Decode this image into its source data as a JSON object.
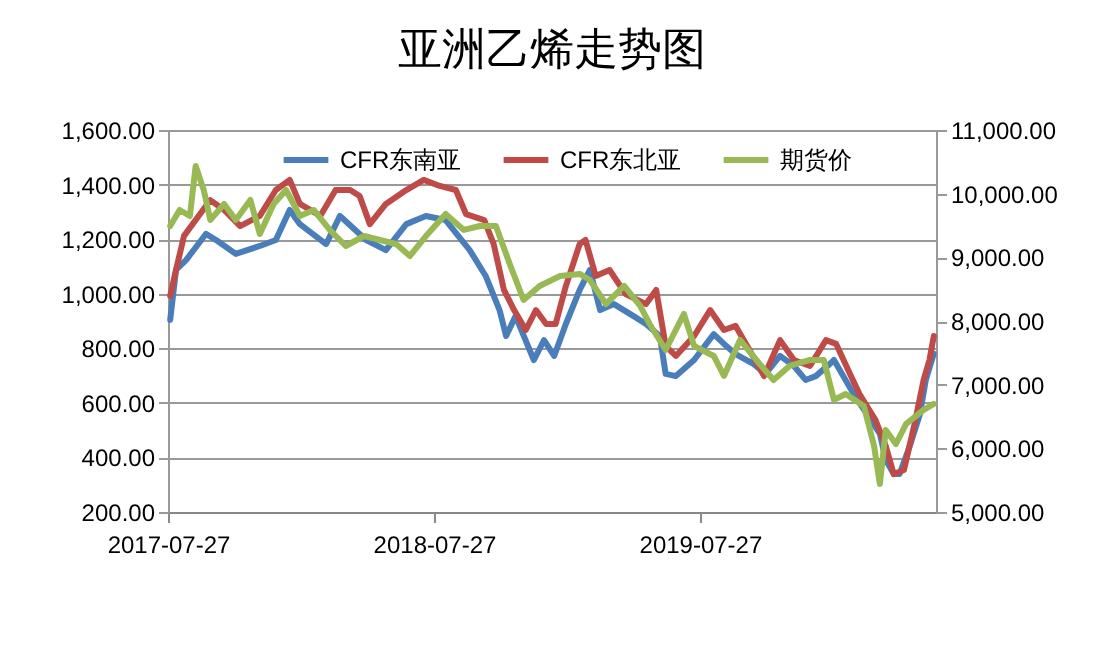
{
  "chart_data": {
    "type": "line",
    "title": "亚洲乙烯走势图",
    "xlim": [
      "2017-07-27",
      "2020-06-15"
    ],
    "xticks": [
      "2017-07-27",
      "2018-07-27",
      "2019-07-27"
    ],
    "ylim": [
      200,
      1600
    ],
    "yticks": [
      {
        "value": 200,
        "label": "200.00"
      },
      {
        "value": 400,
        "label": "400.00"
      },
      {
        "value": 600,
        "label": "600.00"
      },
      {
        "value": 800,
        "label": "800.00"
      },
      {
        "value": 1000,
        "label": "1,000.00"
      },
      {
        "value": 1200,
        "label": "1,200.00"
      },
      {
        "value": 1400,
        "label": "1,400.00"
      },
      {
        "value": 1600,
        "label": "1,600.00"
      }
    ],
    "y2lim": [
      5000,
      11000
    ],
    "y2ticks": [
      {
        "value": 5000,
        "label": "5,000.00"
      },
      {
        "value": 6000,
        "label": "6,000.00"
      },
      {
        "value": 7000,
        "label": "7,000.00"
      },
      {
        "value": 8000,
        "label": "8,000.00"
      },
      {
        "value": 9000,
        "label": "9,000.00"
      },
      {
        "value": 10000,
        "label": "10,000.00"
      },
      {
        "value": 11000,
        "label": "11,000.00"
      }
    ],
    "grid": "y",
    "legend": "top",
    "marker": "none",
    "line_style": "solid",
    "series": [
      {
        "name": "CFR东南亚",
        "color": "#4a7ebb",
        "x": [
          "2017-07-30",
          "2017-08-07",
          "2017-08-21",
          "2017-09-17",
          "2017-10-01",
          "2017-10-28",
          "2017-11-30",
          "2017-12-22",
          "2018-01-10",
          "2018-01-24",
          "2018-03-01",
          "2018-03-20",
          "2018-04-25",
          "2018-05-22",
          "2018-06-19",
          "2018-07-16",
          "2018-08-12",
          "2018-09-14",
          "2018-10-06",
          "2018-10-25",
          "2018-11-03",
          "2018-11-16",
          "2018-12-11",
          "2018-12-25",
          "2019-01-08",
          "2019-01-24",
          "2019-02-12",
          "2019-02-26",
          "2019-03-12",
          "2019-03-31",
          "2019-04-27",
          "2019-05-14",
          "2019-06-02",
          "2019-06-10",
          "2019-06-24",
          "2019-07-19",
          "2019-08-15",
          "2019-08-29",
          "2019-09-14",
          "2019-10-09",
          "2019-10-25",
          "2019-11-14",
          "2019-12-03",
          "2019-12-19",
          "2020-01-02",
          "2020-01-21",
          "2020-01-27",
          "2020-02-23",
          "2020-03-30",
          "2020-04-07",
          "2020-04-18",
          "2020-04-26",
          "2020-05-10",
          "2020-05-24",
          "2020-06-01",
          "2020-06-12"
        ],
        "values": [
          904,
          1087,
          1124,
          1219,
          1197,
          1146,
          1175,
          1197,
          1307,
          1255,
          1182,
          1285,
          1197,
          1160,
          1255,
          1285,
          1270,
          1160,
          1065,
          940,
          845,
          918,
          757,
          830,
          772,
          889,
          1014,
          1087,
          940,
          962,
          918,
          889,
          845,
          706,
          698,
          757,
          852,
          816,
          779,
          742,
          706,
          772,
          735,
          684,
          698,
          742,
          757,
          632,
          486,
          391,
          339,
          339,
          442,
          559,
          684,
          780
        ]
      },
      {
        "name": "CFR东北亚",
        "color": "#be4b48",
        "x": [
          "2017-07-30",
          "2017-08-07",
          "2017-08-18",
          "2017-09-09",
          "2017-09-23",
          "2017-10-12",
          "2017-11-03",
          "2017-11-30",
          "2017-12-22",
          "2018-01-10",
          "2018-01-24",
          "2018-02-21",
          "2018-03-14",
          "2018-04-03",
          "2018-04-16",
          "2018-04-30",
          "2018-05-22",
          "2018-06-19",
          "2018-07-13",
          "2018-08-04",
          "2018-08-26",
          "2018-09-09",
          "2018-10-04",
          "2018-10-17",
          "2018-10-31",
          "2018-11-14",
          "2018-11-30",
          "2018-12-14",
          "2018-12-28",
          "2019-01-10",
          "2019-01-24",
          "2019-02-12",
          "2019-02-20",
          "2019-03-06",
          "2019-03-25",
          "2019-04-16",
          "2019-05-14",
          "2019-05-28",
          "2019-06-10",
          "2019-06-24",
          "2019-07-19",
          "2019-08-10",
          "2019-08-29",
          "2019-09-14",
          "2019-10-03",
          "2019-10-23",
          "2019-11-14",
          "2019-12-03",
          "2019-12-25",
          "2020-01-16",
          "2020-01-30",
          "2020-02-18",
          "2020-03-02",
          "2020-03-24",
          "2020-04-07",
          "2020-04-18",
          "2020-05-02",
          "2020-05-16",
          "2020-05-29",
          "2020-06-06",
          "2020-06-12"
        ],
        "values": [
          992,
          1087,
          1212,
          1292,
          1343,
          1307,
          1248,
          1285,
          1380,
          1417,
          1329,
          1285,
          1380,
          1380,
          1358,
          1255,
          1329,
          1380,
          1417,
          1395,
          1380,
          1292,
          1270,
          1182,
          1014,
          940,
          867,
          940,
          889,
          889,
          1028,
          1182,
          1197,
          1065,
          1087,
          999,
          962,
          1014,
          808,
          772,
          845,
          940,
          867,
          882,
          794,
          698,
          830,
          757,
          735,
          830,
          816,
          706,
          632,
          537,
          442,
          339,
          354,
          515,
          684,
          757,
          845
        ]
      },
      {
        "name": "期货价",
        "color": "#98b954",
        "axis": "y2",
        "x": [
          "2017-07-30",
          "2017-08-12",
          "2017-08-26",
          "2017-09-03",
          "2017-09-14",
          "2017-09-23",
          "2017-10-12",
          "2017-10-28",
          "2017-11-17",
          "2017-11-30",
          "2017-12-19",
          "2018-01-05",
          "2018-01-24",
          "2018-02-12",
          "2018-03-06",
          "2018-03-28",
          "2018-04-22",
          "2018-05-14",
          "2018-06-05",
          "2018-06-24",
          "2018-07-16",
          "2018-08-12",
          "2018-09-06",
          "2018-09-28",
          "2018-10-20",
          "2018-11-08",
          "2018-11-27",
          "2018-12-19",
          "2019-01-16",
          "2019-02-12",
          "2019-02-26",
          "2019-03-20",
          "2019-04-14",
          "2019-05-06",
          "2019-05-19",
          "2019-06-10",
          "2019-07-05",
          "2019-07-19",
          "2019-08-15",
          "2019-08-29",
          "2019-09-20",
          "2019-10-17",
          "2019-11-05",
          "2019-11-27",
          "2019-12-25",
          "2020-01-13",
          "2020-01-27",
          "2020-02-12",
          "2020-03-08",
          "2020-03-22",
          "2020-03-30",
          "2020-04-07",
          "2020-04-21",
          "2020-05-05",
          "2020-05-29",
          "2020-06-12"
        ],
        "values": [
          9492,
          9744,
          9649,
          10435,
          10058,
          9587,
          9838,
          9587,
          9901,
          9367,
          9838,
          10058,
          9649,
          9744,
          9430,
          9178,
          9335,
          9272,
          9210,
          9021,
          9335,
          9681,
          9430,
          9492,
          9492,
          8896,
          8330,
          8550,
          8707,
          8739,
          8644,
          8267,
          8550,
          8236,
          7953,
          7545,
          8110,
          7608,
          7451,
          7137,
          7702,
          7325,
          7074,
          7294,
          7388,
          7388,
          6760,
          6854,
          6666,
          6037,
          5440,
          6288,
          6068,
          6383,
          6603,
          6697
        ]
      }
    ]
  }
}
